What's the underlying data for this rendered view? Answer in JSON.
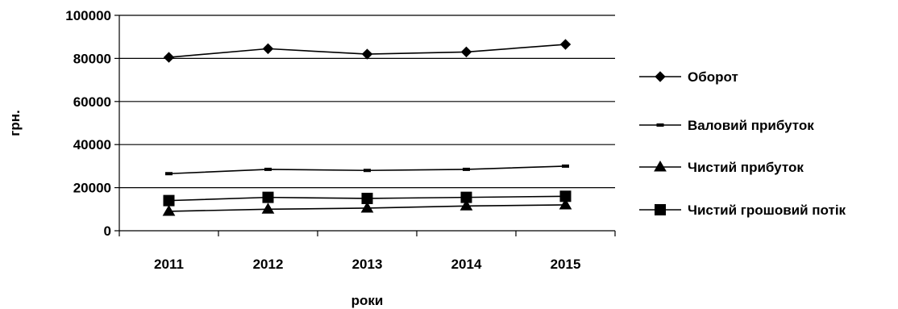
{
  "chart_data": {
    "type": "line",
    "categories": [
      "2011",
      "2012",
      "2013",
      "2014",
      "2015"
    ],
    "xlabel": "роки",
    "ylabel": "грн.",
    "ylim": [
      0,
      100000
    ],
    "yticks": [
      "0",
      "20000",
      "40000",
      "60000",
      "80000",
      "100000"
    ],
    "grid": "horizontal major gridlines",
    "legend_position": "right",
    "series": [
      {
        "name": "Оборот",
        "marker": "diamond",
        "values": [
          80500,
          84500,
          82000,
          83000,
          86500
        ]
      },
      {
        "name": "Валовий прибуток",
        "marker": "dash",
        "values": [
          26500,
          28500,
          28000,
          28500,
          30000
        ]
      },
      {
        "name": "Чистий прибуток",
        "marker": "triangle",
        "values": [
          9000,
          10000,
          10500,
          11500,
          12000
        ]
      },
      {
        "name": "Чистий грошовий потік",
        "marker": "square",
        "values": [
          14000,
          15500,
          15000,
          15500,
          16000
        ]
      }
    ]
  }
}
